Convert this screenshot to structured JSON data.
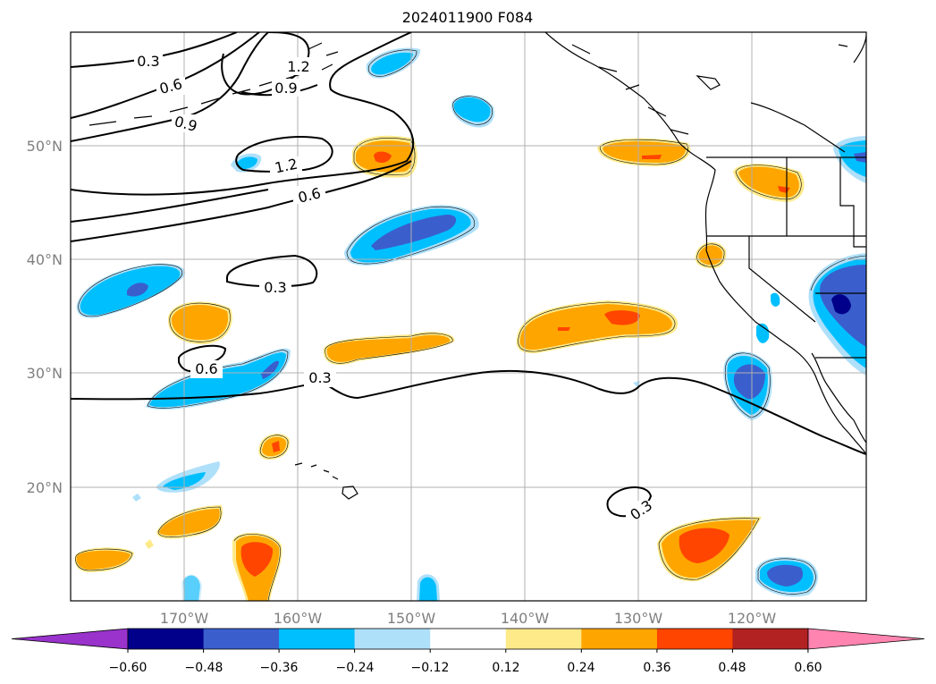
{
  "title": "2024011900 F084",
  "map": {
    "lon_ticks": [
      "170°W",
      "160°W",
      "150°W",
      "140°W",
      "130°W",
      "120°W"
    ],
    "lat_ticks": [
      "50°N",
      "40°N",
      "30°N",
      "20°N"
    ],
    "extent": {
      "lon": [
        -180,
        -110
      ],
      "lat": [
        10,
        60
      ]
    },
    "gridlines": true
  },
  "contour_labels": [
    "0.3",
    "0.6",
    "1.2",
    "0.9",
    "0.9",
    "1.2",
    "0.6",
    "0.3",
    "0.6",
    "0.3",
    "0.3"
  ],
  "colorbar": {
    "ticks": [
      "−0.60",
      "−0.48",
      "−0.36",
      "−0.24",
      "−0.12",
      "0.12",
      "0.24",
      "0.36",
      "0.48",
      "0.60"
    ],
    "colors": [
      "#9933cc",
      "#00008b",
      "#3a5fcd",
      "#00bfff",
      "#afe0fa",
      "#ffffff",
      "#ffea8a",
      "#ffa500",
      "#ff4500",
      "#b22222",
      "#ff85b0"
    ],
    "extend": "both"
  }
}
